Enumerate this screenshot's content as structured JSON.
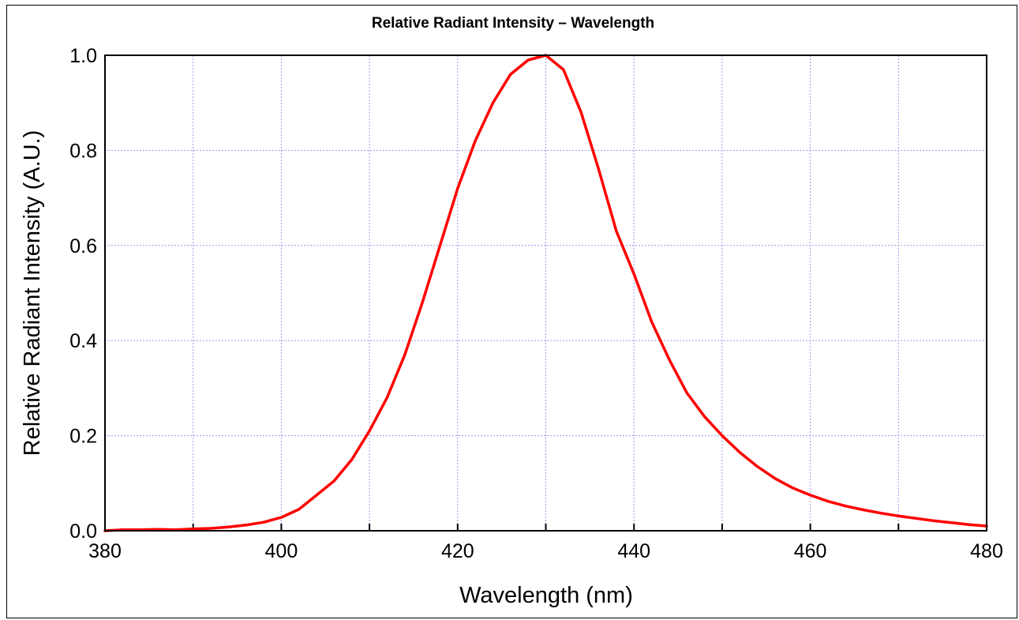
{
  "chart_data": {
    "type": "line",
    "title": "Relative Radiant Intensity – Wavelength",
    "xlabel": "Wavelength (nm)",
    "ylabel": "Relative Radiant Intensity (A.U.)",
    "xlim": [
      380,
      480
    ],
    "ylim": [
      0,
      1.0
    ],
    "x_ticks": [
      "380",
      "400",
      "420",
      "440",
      "460",
      "480"
    ],
    "y_ticks": [
      "0.0",
      "0.2",
      "0.4",
      "0.6",
      "0.8",
      "1.0"
    ],
    "grid": true,
    "line_color": "#ff0000",
    "grid_color": "#9999ee",
    "series": [
      {
        "x": [
          380,
          382,
          384,
          386,
          388,
          390,
          392,
          394,
          396,
          398,
          400,
          402,
          404,
          406,
          408,
          410,
          412,
          414,
          416,
          418,
          420,
          422,
          424,
          426,
          428,
          430,
          432,
          434,
          436,
          438,
          440,
          442,
          444,
          446,
          448,
          450,
          452,
          454,
          456,
          458,
          460,
          462,
          464,
          466,
          468,
          470,
          472,
          474,
          476,
          478,
          480
        ],
        "values": [
          0.0,
          0.002,
          0.002,
          0.003,
          0.002,
          0.004,
          0.005,
          0.008,
          0.012,
          0.018,
          0.028,
          0.045,
          0.075,
          0.105,
          0.15,
          0.21,
          0.28,
          0.37,
          0.48,
          0.6,
          0.72,
          0.82,
          0.9,
          0.96,
          0.99,
          1.0,
          0.97,
          0.88,
          0.76,
          0.63,
          0.54,
          0.44,
          0.36,
          0.29,
          0.24,
          0.2,
          0.165,
          0.135,
          0.11,
          0.09,
          0.075,
          0.062,
          0.052,
          0.044,
          0.037,
          0.031,
          0.026,
          0.021,
          0.017,
          0.013,
          0.01
        ]
      }
    ]
  }
}
